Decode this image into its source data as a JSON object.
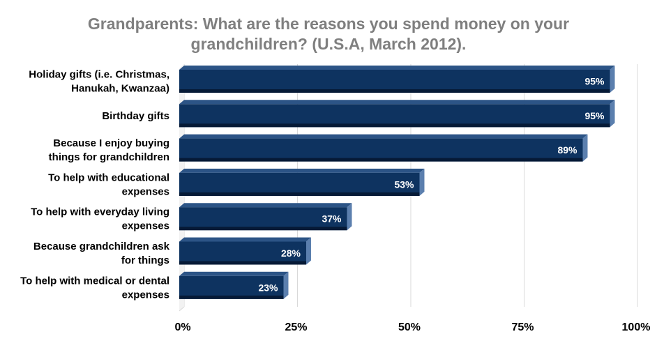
{
  "chart_data": {
    "type": "bar",
    "orientation": "horizontal",
    "title_lines": [
      "Grandparents: What are the reasons you spend money on your",
      "grandchildren? (U.S.A, March 2012)."
    ],
    "categories": [
      [
        "Holiday gifts (i.e. Christmas,",
        "Hanukah, Kwanzaa)"
      ],
      [
        "Birthday gifts"
      ],
      [
        "Because I enjoy buying",
        "things for grandchildren"
      ],
      [
        "To help with educational",
        "expenses"
      ],
      [
        "To help with everyday living",
        "expenses"
      ],
      [
        "Because grandchildren ask",
        "for things"
      ],
      [
        "To help with medical or dental",
        "expenses"
      ]
    ],
    "values": [
      95,
      95,
      89,
      53,
      37,
      28,
      23
    ],
    "value_labels": [
      "95%",
      "95%",
      "89%",
      "53%",
      "37%",
      "28%",
      "23%"
    ],
    "xlim": [
      0,
      100
    ],
    "x_ticks": [
      0,
      25,
      50,
      75,
      100
    ],
    "x_tick_labels": [
      "0%",
      "25%",
      "50%",
      "75%",
      "100%"
    ],
    "grid": true,
    "legend": "none",
    "colors": {
      "bar_front": "#0e3360",
      "bar_top": "#2c5486",
      "bar_side": "#5b7fae",
      "bar_shadow": "#061a36",
      "grid": "#d9d9d9",
      "title": "#7f7f7f",
      "text": "#000000",
      "value_label": "#ffffff"
    }
  }
}
